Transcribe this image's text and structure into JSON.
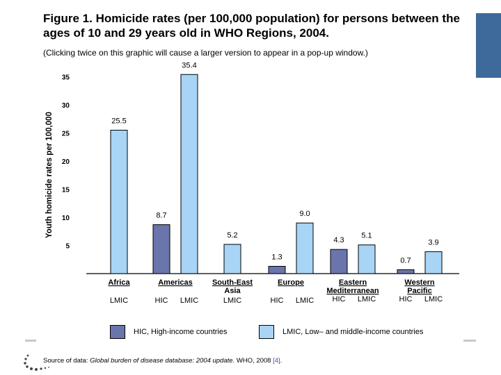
{
  "page": {
    "title": "Figure 1. Homicide rates (per 100,000 population) for persons between the ages of 10 and 29 years old in WHO Regions, 2004.",
    "subtitle": "(Clicking twice on this graphic will cause a larger version to appear in a pop-up window.)",
    "source_prefix": "Source of data: ",
    "source_publication": "Global burden of disease database: 2004 update",
    "source_suffix": ". WHO, 2008 ",
    "source_ref": "[4]",
    "source_end": "."
  },
  "colors": {
    "hic": "#6a75ac",
    "lmic": "#a8d4f6",
    "accent": "#3d6a9a"
  },
  "chart_data": {
    "type": "bar",
    "title": "Homicide rates (per 100,000 population) for persons between the ages of 10 and 29 years old in WHO Regions, 2004",
    "ylabel": "Youth homicide rates per 100,000",
    "xlabel": "",
    "ylim": [
      0,
      38
    ],
    "yticks": [
      5,
      10,
      15,
      20,
      25,
      30,
      35
    ],
    "legend": [
      {
        "key": "HIC",
        "label": "HIC, High-income countries"
      },
      {
        "key": "LMIC",
        "label": "LMIC, Low– and middle-income countries"
      }
    ],
    "regions": [
      {
        "name": "Africa",
        "bars": [
          {
            "group": "LMIC",
            "value": 25.5,
            "label": "25.5"
          }
        ]
      },
      {
        "name": "Americas",
        "bars": [
          {
            "group": "HIC",
            "value": 8.7,
            "label": "8.7"
          },
          {
            "group": "LMIC",
            "value": 35.4,
            "label": "35.4"
          }
        ]
      },
      {
        "name": "South-East Asia",
        "bars": [
          {
            "group": "LMIC",
            "value": 5.2,
            "label": "5.2"
          }
        ]
      },
      {
        "name": "Europe",
        "bars": [
          {
            "group": "HIC",
            "value": 1.3,
            "label": "1.3"
          },
          {
            "group": "LMIC",
            "value": 9.0,
            "label": "9.0"
          }
        ]
      },
      {
        "name": "Eastern Mediterranean",
        "bars": [
          {
            "group": "HIC",
            "value": 4.3,
            "label": "4.3"
          },
          {
            "group": "LMIC",
            "value": 5.1,
            "label": "5.1"
          }
        ]
      },
      {
        "name": "Western Pacific",
        "bars": [
          {
            "group": "HIC",
            "value": 0.7,
            "label": "0.7"
          },
          {
            "group": "LMIC",
            "value": 3.9,
            "label": "3.9"
          }
        ]
      }
    ]
  }
}
